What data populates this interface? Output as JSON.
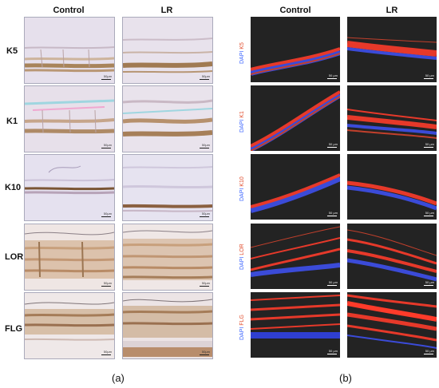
{
  "panel_a": {
    "label": "(a)",
    "col_headers": [
      "Control",
      "LR"
    ],
    "rows": [
      "K5",
      "K1",
      "K10",
      "LOR",
      "FLG"
    ],
    "scale_text": "50µm"
  },
  "panel_b": {
    "label": "(b)",
    "col_headers": [
      "Control",
      "LR"
    ],
    "rows": [
      {
        "dapi": "DAPI",
        "marker": "K5"
      },
      {
        "dapi": "DAPI",
        "marker": "K1"
      },
      {
        "dapi": "DAPI",
        "marker": "K10"
      },
      {
        "dapi": "DAPI",
        "marker": "LOR"
      },
      {
        "dapi": "DAPI",
        "marker": "FLG"
      }
    ],
    "scale_text": "50 µm"
  },
  "colors": {
    "dapi": "#3a63ff",
    "marker": "#e04a2a",
    "ihc_stain": "#a0713f",
    "fluor_red": "#ff3b2a"
  }
}
